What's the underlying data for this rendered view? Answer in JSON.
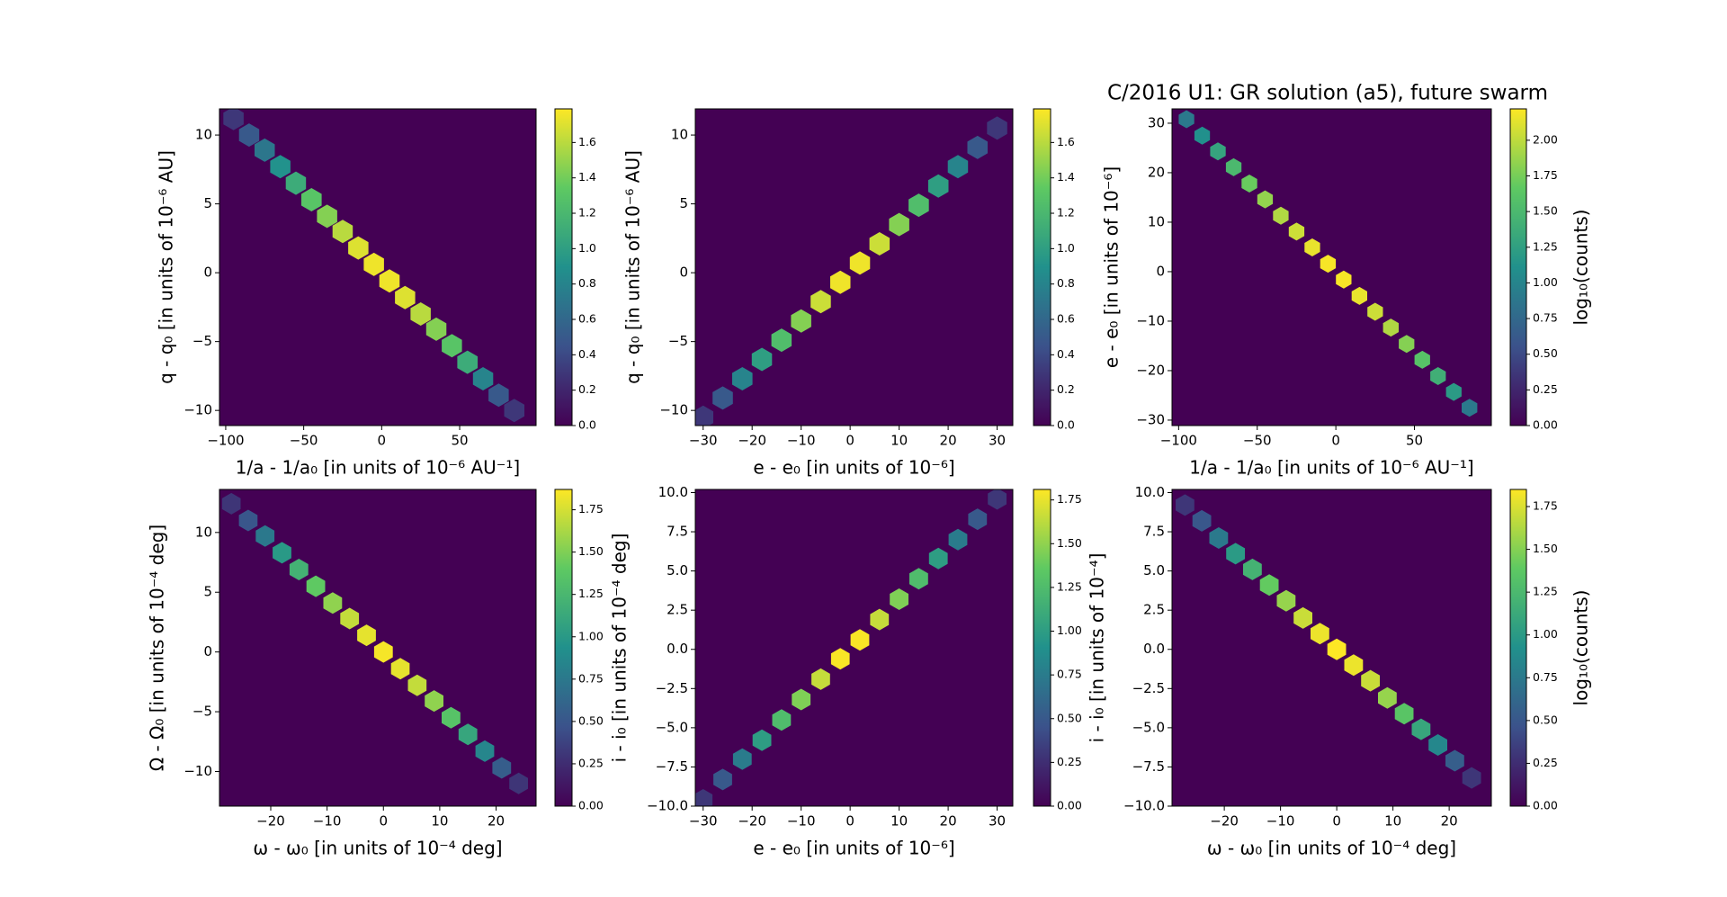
{
  "chart_data": [
    {
      "type": "hexbin",
      "colormap": "viridis",
      "x_label": "1/a - 1/a₀ [in units of 10⁻⁶ AU⁻¹]",
      "y_label": "q - q₀ [in units of 10⁻⁶ AU]",
      "xlim": [
        -104,
        99
      ],
      "ylim": [
        -11.1,
        11.9
      ],
      "clim": [
        0,
        1.79
      ],
      "xticks": [
        {
          "value": -100,
          "label": "−100"
        },
        {
          "value": -50,
          "label": "−50"
        },
        0,
        50
      ],
      "yticks": [
        {
          "value": -10,
          "label": "−10"
        },
        {
          "value": -5,
          "label": "−5"
        },
        0,
        5,
        10
      ],
      "cticks": [
        {
          "value": 0,
          "label": "0.0"
        },
        0.2,
        0.4,
        0.6,
        0.8,
        {
          "value": 1,
          "label": "1.0"
        },
        1.2,
        1.4,
        1.6
      ],
      "x": [
        -95,
        -85,
        -75,
        -65,
        -55,
        -45,
        -35,
        -25,
        -15,
        -5,
        5,
        15,
        25,
        35,
        45,
        55,
        65,
        75,
        85
      ],
      "y": [
        11.2,
        10.0,
        8.9,
        7.7,
        6.5,
        5.3,
        4.1,
        3.0,
        1.8,
        0.6,
        -0.6,
        -1.8,
        -3.0,
        -4.1,
        -5.3,
        -6.5,
        -7.7,
        -8.9,
        -10.0
      ],
      "values": [
        0.3,
        0.5,
        0.7,
        0.9,
        1.1,
        1.3,
        1.45,
        1.6,
        1.7,
        1.75,
        1.75,
        1.7,
        1.6,
        1.45,
        1.3,
        1.1,
        0.8,
        0.5,
        0.3
      ]
    },
    {
      "type": "hexbin",
      "colormap": "viridis",
      "x_label": "e - e₀ [in units of 10⁻⁶]",
      "y_label": "q - q₀ [in units of 10⁻⁶ AU]",
      "xlim": [
        -31.6,
        33.2
      ],
      "ylim": [
        -11.1,
        11.9
      ],
      "clim": [
        0,
        1.79
      ],
      "xticks": [
        {
          "value": -30,
          "label": "−30"
        },
        {
          "value": -20,
          "label": "−20"
        },
        {
          "value": -10,
          "label": "−10"
        },
        0,
        10,
        20,
        30
      ],
      "yticks": [
        {
          "value": -10,
          "label": "−10"
        },
        {
          "value": -5,
          "label": "−5"
        },
        0,
        5,
        10
      ],
      "cticks": [
        {
          "value": 0,
          "label": "0.0"
        },
        0.2,
        0.4,
        0.6,
        0.8,
        {
          "value": 1,
          "label": "1.0"
        },
        1.2,
        1.4,
        1.6
      ],
      "x": [
        -30,
        -26,
        -22,
        -18,
        -14,
        -10,
        -6,
        -2,
        2,
        6,
        10,
        14,
        18,
        22,
        26,
        30
      ],
      "y": [
        -10.5,
        -9.1,
        -7.7,
        -6.3,
        -4.9,
        -3.5,
        -2.1,
        -0.7,
        0.7,
        2.1,
        3.5,
        4.9,
        6.3,
        7.7,
        9.1,
        10.5
      ],
      "values": [
        0.3,
        0.5,
        0.8,
        1.0,
        1.25,
        1.45,
        1.65,
        1.75,
        1.75,
        1.65,
        1.45,
        1.25,
        1.0,
        0.8,
        0.5,
        0.3
      ]
    },
    {
      "type": "hexbin",
      "colormap": "viridis",
      "title": "C/2016 U1: GR solution (a5),  future swarm",
      "x_label": "1/a - 1/a₀ [in units of 10⁻⁶ AU⁻¹]",
      "y_label": "e - e₀ [in units of 10⁻⁶]",
      "colorbar_label": "log₁₀(counts)",
      "xlim": [
        -104.2,
        98.9
      ],
      "ylim": [
        -31.1,
        32.9
      ],
      "clim": [
        0,
        2.22
      ],
      "xticks": [
        {
          "value": -100,
          "label": "−100"
        },
        {
          "value": -50,
          "label": "−50"
        },
        0,
        50
      ],
      "yticks": [
        {
          "value": -30,
          "label": "−30"
        },
        {
          "value": -20,
          "label": "−20"
        },
        {
          "value": -10,
          "label": "−10"
        },
        0,
        10,
        20,
        30
      ],
      "cticks": [
        {
          "value": 0,
          "label": "0.00"
        },
        0.25,
        {
          "value": 0.5,
          "label": "0.50"
        },
        0.75,
        {
          "value": 1,
          "label": "1.00"
        },
        1.25,
        {
          "value": 1.5,
          "label": "1.50"
        },
        1.75,
        {
          "value": 2,
          "label": "2.00"
        }
      ],
      "x": [
        -95,
        -85,
        -75,
        -65,
        -55,
        -45,
        -35,
        -25,
        -15,
        -5,
        5,
        15,
        25,
        35,
        45,
        55,
        65,
        75,
        85
      ],
      "y": [
        30.8,
        27.5,
        24.3,
        21.1,
        17.8,
        14.6,
        11.3,
        8.1,
        4.9,
        1.6,
        -1.6,
        -4.9,
        -8.1,
        -11.3,
        -14.6,
        -17.8,
        -21.1,
        -24.3,
        -27.5
      ],
      "values": [
        0.9,
        1.1,
        1.3,
        1.5,
        1.7,
        1.85,
        1.95,
        2.05,
        2.15,
        2.2,
        2.2,
        2.15,
        2.05,
        1.95,
        1.8,
        1.6,
        1.4,
        1.2,
        0.9
      ]
    },
    {
      "type": "hexbin",
      "colormap": "viridis",
      "x_label": "ω - ω₀ [in units of 10⁻⁴ deg]",
      "y_label": "Ω - Ω₀ [in units of 10⁻⁴ deg]",
      "xlim": [
        -29.1,
        27.1
      ],
      "ylim": [
        -12.9,
        13.6
      ],
      "clim": [
        0,
        1.87
      ],
      "xticks": [
        {
          "value": -20,
          "label": "−20"
        },
        {
          "value": -10,
          "label": "−10"
        },
        0,
        10,
        20
      ],
      "yticks": [
        {
          "value": -10,
          "label": "−10"
        },
        {
          "value": -5,
          "label": "−5"
        },
        0,
        5,
        10
      ],
      "cticks": [
        {
          "value": 0,
          "label": "0.00"
        },
        0.25,
        {
          "value": 0.5,
          "label": "0.50"
        },
        0.75,
        {
          "value": 1,
          "label": "1.00"
        },
        1.25,
        {
          "value": 1.5,
          "label": "1.50"
        },
        1.75
      ],
      "x": [
        -27,
        -24,
        -21,
        -18,
        -15,
        -12,
        -9,
        -6,
        -3,
        0,
        3,
        6,
        9,
        12,
        15,
        18,
        21,
        24
      ],
      "y": [
        12.4,
        11.0,
        9.7,
        8.3,
        6.9,
        5.5,
        4.1,
        2.8,
        1.4,
        0,
        -1.4,
        -2.8,
        -4.1,
        -5.5,
        -6.9,
        -8.3,
        -9.7,
        -11.0
      ],
      "values": [
        0.3,
        0.5,
        0.75,
        1.0,
        1.2,
        1.4,
        1.55,
        1.7,
        1.8,
        1.85,
        1.8,
        1.7,
        1.55,
        1.35,
        1.1,
        0.85,
        0.55,
        0.3
      ]
    },
    {
      "type": "hexbin",
      "colormap": "viridis",
      "x_label": "e - e₀ [in units of 10⁻⁶]",
      "y_label": "i - i₀ [in units of 10⁻⁴ deg]",
      "xlim": [
        -31.6,
        33.2
      ],
      "ylim": [
        -10,
        10.2
      ],
      "clim": [
        0,
        1.81
      ],
      "xticks": [
        {
          "value": -30,
          "label": "−30"
        },
        {
          "value": -20,
          "label": "−20"
        },
        {
          "value": -10,
          "label": "−10"
        },
        0,
        10,
        20,
        30
      ],
      "yticks": [
        {
          "value": -10,
          "label": "−10.0"
        },
        {
          "value": -7.5,
          "label": "−7.5"
        },
        {
          "value": -5,
          "label": "−5.0"
        },
        {
          "value": -2.5,
          "label": "−2.5"
        },
        {
          "value": 0,
          "label": "0.0"
        },
        2.5,
        {
          "value": 5,
          "label": "5.0"
        },
        7.5,
        {
          "value": 10,
          "label": "10.0"
        }
      ],
      "cticks": [
        {
          "value": 0,
          "label": "0.00"
        },
        0.25,
        {
          "value": 0.5,
          "label": "0.50"
        },
        0.75,
        {
          "value": 1,
          "label": "1.00"
        },
        1.25,
        {
          "value": 1.5,
          "label": "1.50"
        },
        1.75
      ],
      "x": [
        -30,
        -26,
        -22,
        -18,
        -14,
        -10,
        -6,
        -2,
        2,
        6,
        10,
        14,
        18,
        22,
        26,
        30
      ],
      "y": [
        -9.6,
        -8.3,
        -7.0,
        -5.8,
        -4.5,
        -3.2,
        -1.9,
        -0.6,
        0.6,
        1.9,
        3.2,
        4.5,
        5.8,
        7.0,
        8.3,
        9.6
      ],
      "values": [
        0.3,
        0.5,
        0.75,
        1.0,
        1.25,
        1.45,
        1.65,
        1.8,
        1.8,
        1.65,
        1.45,
        1.25,
        1.0,
        0.75,
        0.5,
        0.3
      ]
    },
    {
      "type": "hexbin",
      "colormap": "viridis",
      "x_label": "ω - ω₀ [in units of 10⁻⁴ deg]",
      "y_label": "i - i₀ [in units of 10⁻⁴]",
      "colorbar_label": "log₁₀(counts)",
      "xlim": [
        -29.3,
        27.5
      ],
      "ylim": [
        -10,
        10.2
      ],
      "clim": [
        0,
        1.85
      ],
      "xticks": [
        {
          "value": -20,
          "label": "−20"
        },
        {
          "value": -10,
          "label": "−10"
        },
        0,
        10,
        20
      ],
      "yticks": [
        {
          "value": -10,
          "label": "−10.0"
        },
        {
          "value": -7.5,
          "label": "−7.5"
        },
        {
          "value": -5,
          "label": "−5.0"
        },
        {
          "value": -2.5,
          "label": "−2.5"
        },
        {
          "value": 0,
          "label": "0.0"
        },
        2.5,
        {
          "value": 5,
          "label": "5.0"
        },
        7.5,
        {
          "value": 10,
          "label": "10.0"
        }
      ],
      "cticks": [
        {
          "value": 0,
          "label": "0.00"
        },
        0.25,
        {
          "value": 0.5,
          "label": "0.50"
        },
        0.75,
        {
          "value": 1,
          "label": "1.00"
        },
        1.25,
        {
          "value": 1.5,
          "label": "1.50"
        },
        1.75
      ],
      "x": [
        -27,
        -24,
        -21,
        -18,
        -15,
        -12,
        -9,
        -6,
        -3,
        0,
        3,
        6,
        9,
        12,
        15,
        18,
        21,
        24
      ],
      "y": [
        9.2,
        8.2,
        7.1,
        6.1,
        5.1,
        4.1,
        3.1,
        2.0,
        1.0,
        0,
        -1.0,
        -2.0,
        -3.1,
        -4.1,
        -5.1,
        -6.1,
        -7.1,
        -8.2
      ],
      "values": [
        0.3,
        0.5,
        0.75,
        1.0,
        1.2,
        1.4,
        1.55,
        1.7,
        1.8,
        1.85,
        1.8,
        1.7,
        1.55,
        1.35,
        1.1,
        0.85,
        0.55,
        0.3
      ]
    }
  ]
}
